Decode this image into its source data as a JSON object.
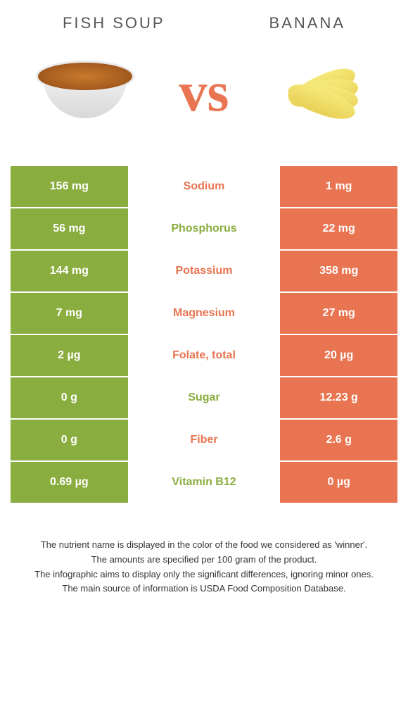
{
  "header": {
    "left_title": "Fish soup",
    "right_title": "Banana",
    "vs": "vs"
  },
  "colors": {
    "green": "#8aad3f",
    "orange": "#e97451"
  },
  "rows": [
    {
      "left": "156 mg",
      "mid": "Sodium",
      "right": "1 mg",
      "winner": "orange"
    },
    {
      "left": "56 mg",
      "mid": "Phosphorus",
      "right": "22 mg",
      "winner": "green"
    },
    {
      "left": "144 mg",
      "mid": "Potassium",
      "right": "358 mg",
      "winner": "orange"
    },
    {
      "left": "7 mg",
      "mid": "Magnesium",
      "right": "27 mg",
      "winner": "orange"
    },
    {
      "left": "2 µg",
      "mid": "Folate, total",
      "right": "20 µg",
      "winner": "orange"
    },
    {
      "left": "0 g",
      "mid": "Sugar",
      "right": "12.23 g",
      "winner": "green"
    },
    {
      "left": "0 g",
      "mid": "Fiber",
      "right": "2.6 g",
      "winner": "orange"
    },
    {
      "left": "0.69 µg",
      "mid": "Vitamin B12",
      "right": "0 µg",
      "winner": "green"
    }
  ],
  "footer": {
    "line1": "The nutrient name is displayed in the color of the food we considered as 'winner'.",
    "line2": "The amounts are specified per 100 gram of the product.",
    "line3": "The infographic aims to display only the significant differences, ignoring minor ones.",
    "line4": "The main source of information is USDA Food Composition Database."
  }
}
